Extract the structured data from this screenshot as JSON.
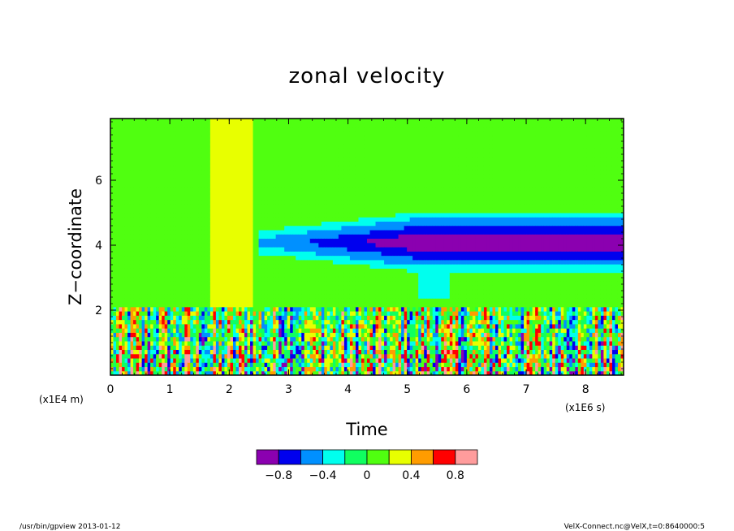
{
  "chart_data": {
    "type": "heatmap",
    "title": "zonal velocity",
    "xlabel": "Time",
    "ylabel": "Z−coordinate",
    "x_units": "(x1E6 s)",
    "y_units": "(x1E4 m)",
    "xlim": [
      0,
      8.64
    ],
    "ylim": [
      0,
      7.9
    ],
    "x_ticks": [
      "0",
      "1",
      "2",
      "3",
      "4",
      "5",
      "6",
      "7",
      "8"
    ],
    "y_ticks": [
      "2",
      "4",
      "6"
    ],
    "colorbar": {
      "levels": [
        -1.0,
        -0.8,
        -0.6,
        -0.4,
        -0.2,
        0,
        0.2,
        0.4,
        0.6,
        0.8,
        1.0
      ],
      "colors": [
        "#8b00b0",
        "#0000ee",
        "#0090ff",
        "#00ffee",
        "#10ff60",
        "#50ff10",
        "#e8ff00",
        "#ff9c00",
        "#ff0000",
        "#ff9c9c"
      ],
      "tick_labels": [
        "−0.8",
        "−0.4",
        "0",
        "0.4",
        "0.8"
      ]
    },
    "features": [
      {
        "name": "background",
        "value": 0.0
      },
      {
        "name": "near-surface oscillating layer",
        "z_range": [
          0,
          2.1
        ],
        "value_range": [
          -1.0,
          1.0
        ]
      },
      {
        "name": "negative jet",
        "t_range": [
          2.5,
          8.64
        ],
        "z_center": 4.1,
        "min_value": -0.95
      }
    ]
  },
  "footer": {
    "left": "/usr/bin/gpview   2013-01-12",
    "right": "VelX-Connect.nc@VelX,t=0:8640000:5"
  }
}
